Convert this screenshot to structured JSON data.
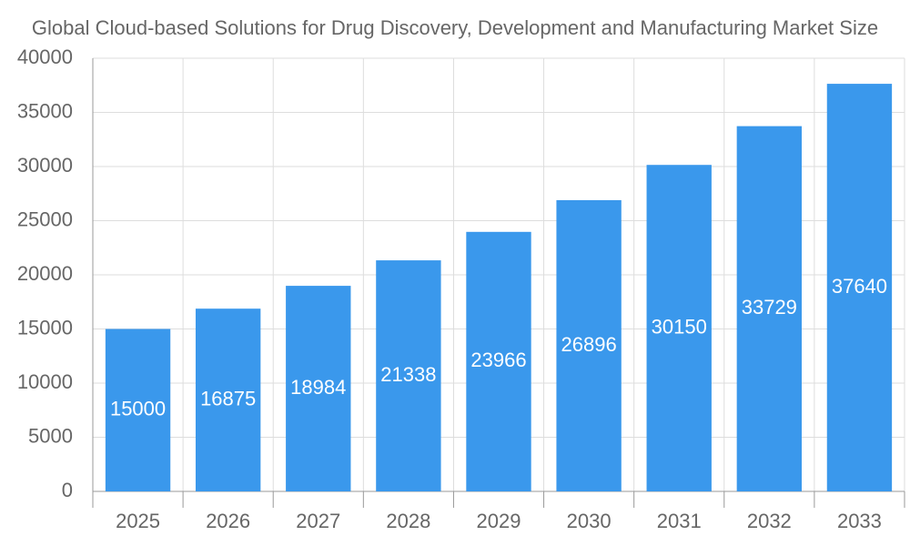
{
  "chart_data": {
    "type": "bar",
    "title": "Global Cloud-based Solutions for Drug Discovery, Development and Manufacturing Market Size",
    "categories": [
      "2025",
      "2026",
      "2027",
      "2028",
      "2029",
      "2030",
      "2031",
      "2032",
      "2033"
    ],
    "values": [
      15000,
      16875,
      18984,
      21338,
      23966,
      26896,
      30150,
      33729,
      37640
    ],
    "color": "#3a98ec",
    "ylim": [
      0,
      40000
    ],
    "yticks": [
      0,
      5000,
      10000,
      15000,
      20000,
      25000,
      30000,
      35000,
      40000
    ],
    "grid": true
  }
}
